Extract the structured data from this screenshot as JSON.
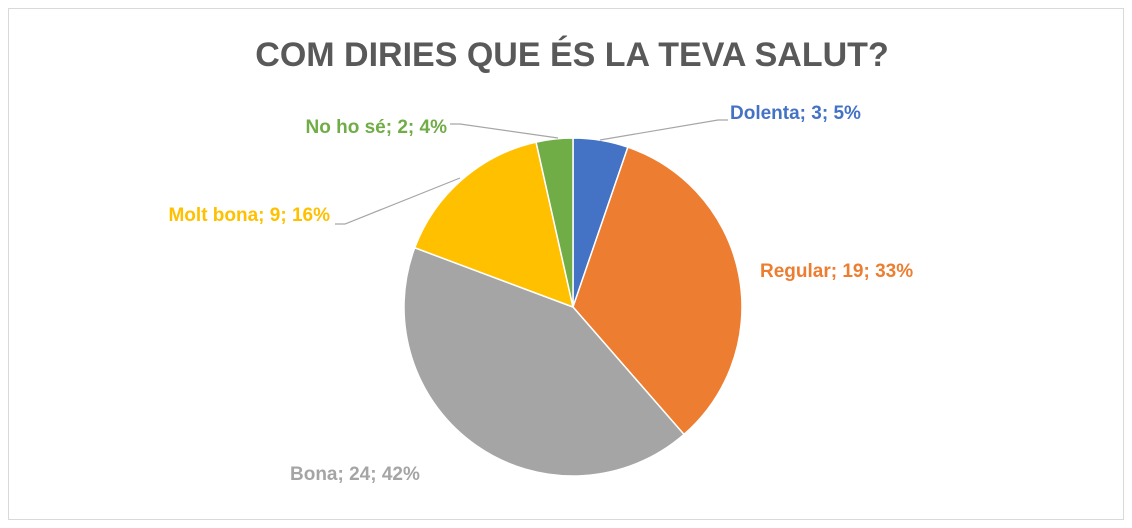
{
  "chart_data": {
    "type": "pie",
    "title": "COM DIRIES QUE ÉS LA TEVA SALUT?",
    "values": [
      3,
      19,
      24,
      9,
      2
    ],
    "value_labels": [
      "Dolenta; 3; 5%",
      "Regular; 19; 33%",
      "Bona; 24; 42%",
      "Molt bona; 9; 16%",
      "No ho sé; 2; 4%"
    ],
    "colors": [
      "#4472c4",
      "#ed7d31",
      "#a5a5a5",
      "#ffc000",
      "#70ad47"
    ]
  }
}
